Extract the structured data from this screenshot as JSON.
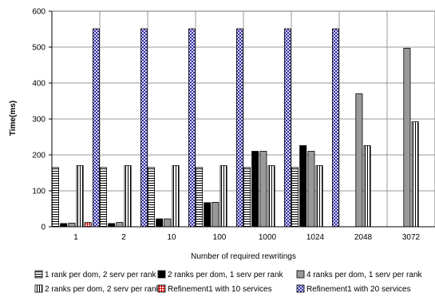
{
  "chart_data": {
    "type": "bar",
    "title": "",
    "xlabel": "Number of required rewritings",
    "ylabel": "Time(ms)",
    "ylim": [
      0,
      600
    ],
    "yticks": [
      0,
      100,
      200,
      300,
      400,
      500,
      600
    ],
    "grid": true,
    "legend_position": "bottom",
    "categories": [
      "1",
      "2",
      "10",
      "100",
      "1000",
      "1024",
      "2048",
      "3072"
    ],
    "series": [
      {
        "name": "1 rank per dom, 2 serv per rank",
        "pattern": "hstripe",
        "color": "#000000",
        "values": [
          165,
          165,
          165,
          165,
          165,
          165,
          null,
          null
        ]
      },
      {
        "name": "2 ranks per dom, 1 serv per rank",
        "pattern": "solid",
        "color": "#000000",
        "values": [
          9,
          9,
          22,
          67,
          210,
          226,
          null,
          null
        ]
      },
      {
        "name": "4 ranks per dom, 1 serv per rank",
        "pattern": "solid",
        "color": "#999999",
        "values": [
          10,
          12,
          22,
          68,
          210,
          210,
          370,
          497
        ]
      },
      {
        "name": "2 ranks per dom, 2 serv per rank",
        "pattern": "vstripe",
        "color": "#000000",
        "values": [
          170,
          170,
          170,
          170,
          170,
          170,
          226,
          292
        ]
      },
      {
        "name": "Refinement1 with 10 services",
        "pattern": "grid",
        "color": "#cc0000",
        "values": [
          12,
          null,
          null,
          null,
          null,
          null,
          null,
          null
        ]
      },
      {
        "name": "Refinement1 with 20 services",
        "pattern": "checker",
        "color": "#3333aa",
        "values": [
          551,
          551,
          551,
          551,
          551,
          551,
          null,
          null
        ]
      }
    ]
  }
}
